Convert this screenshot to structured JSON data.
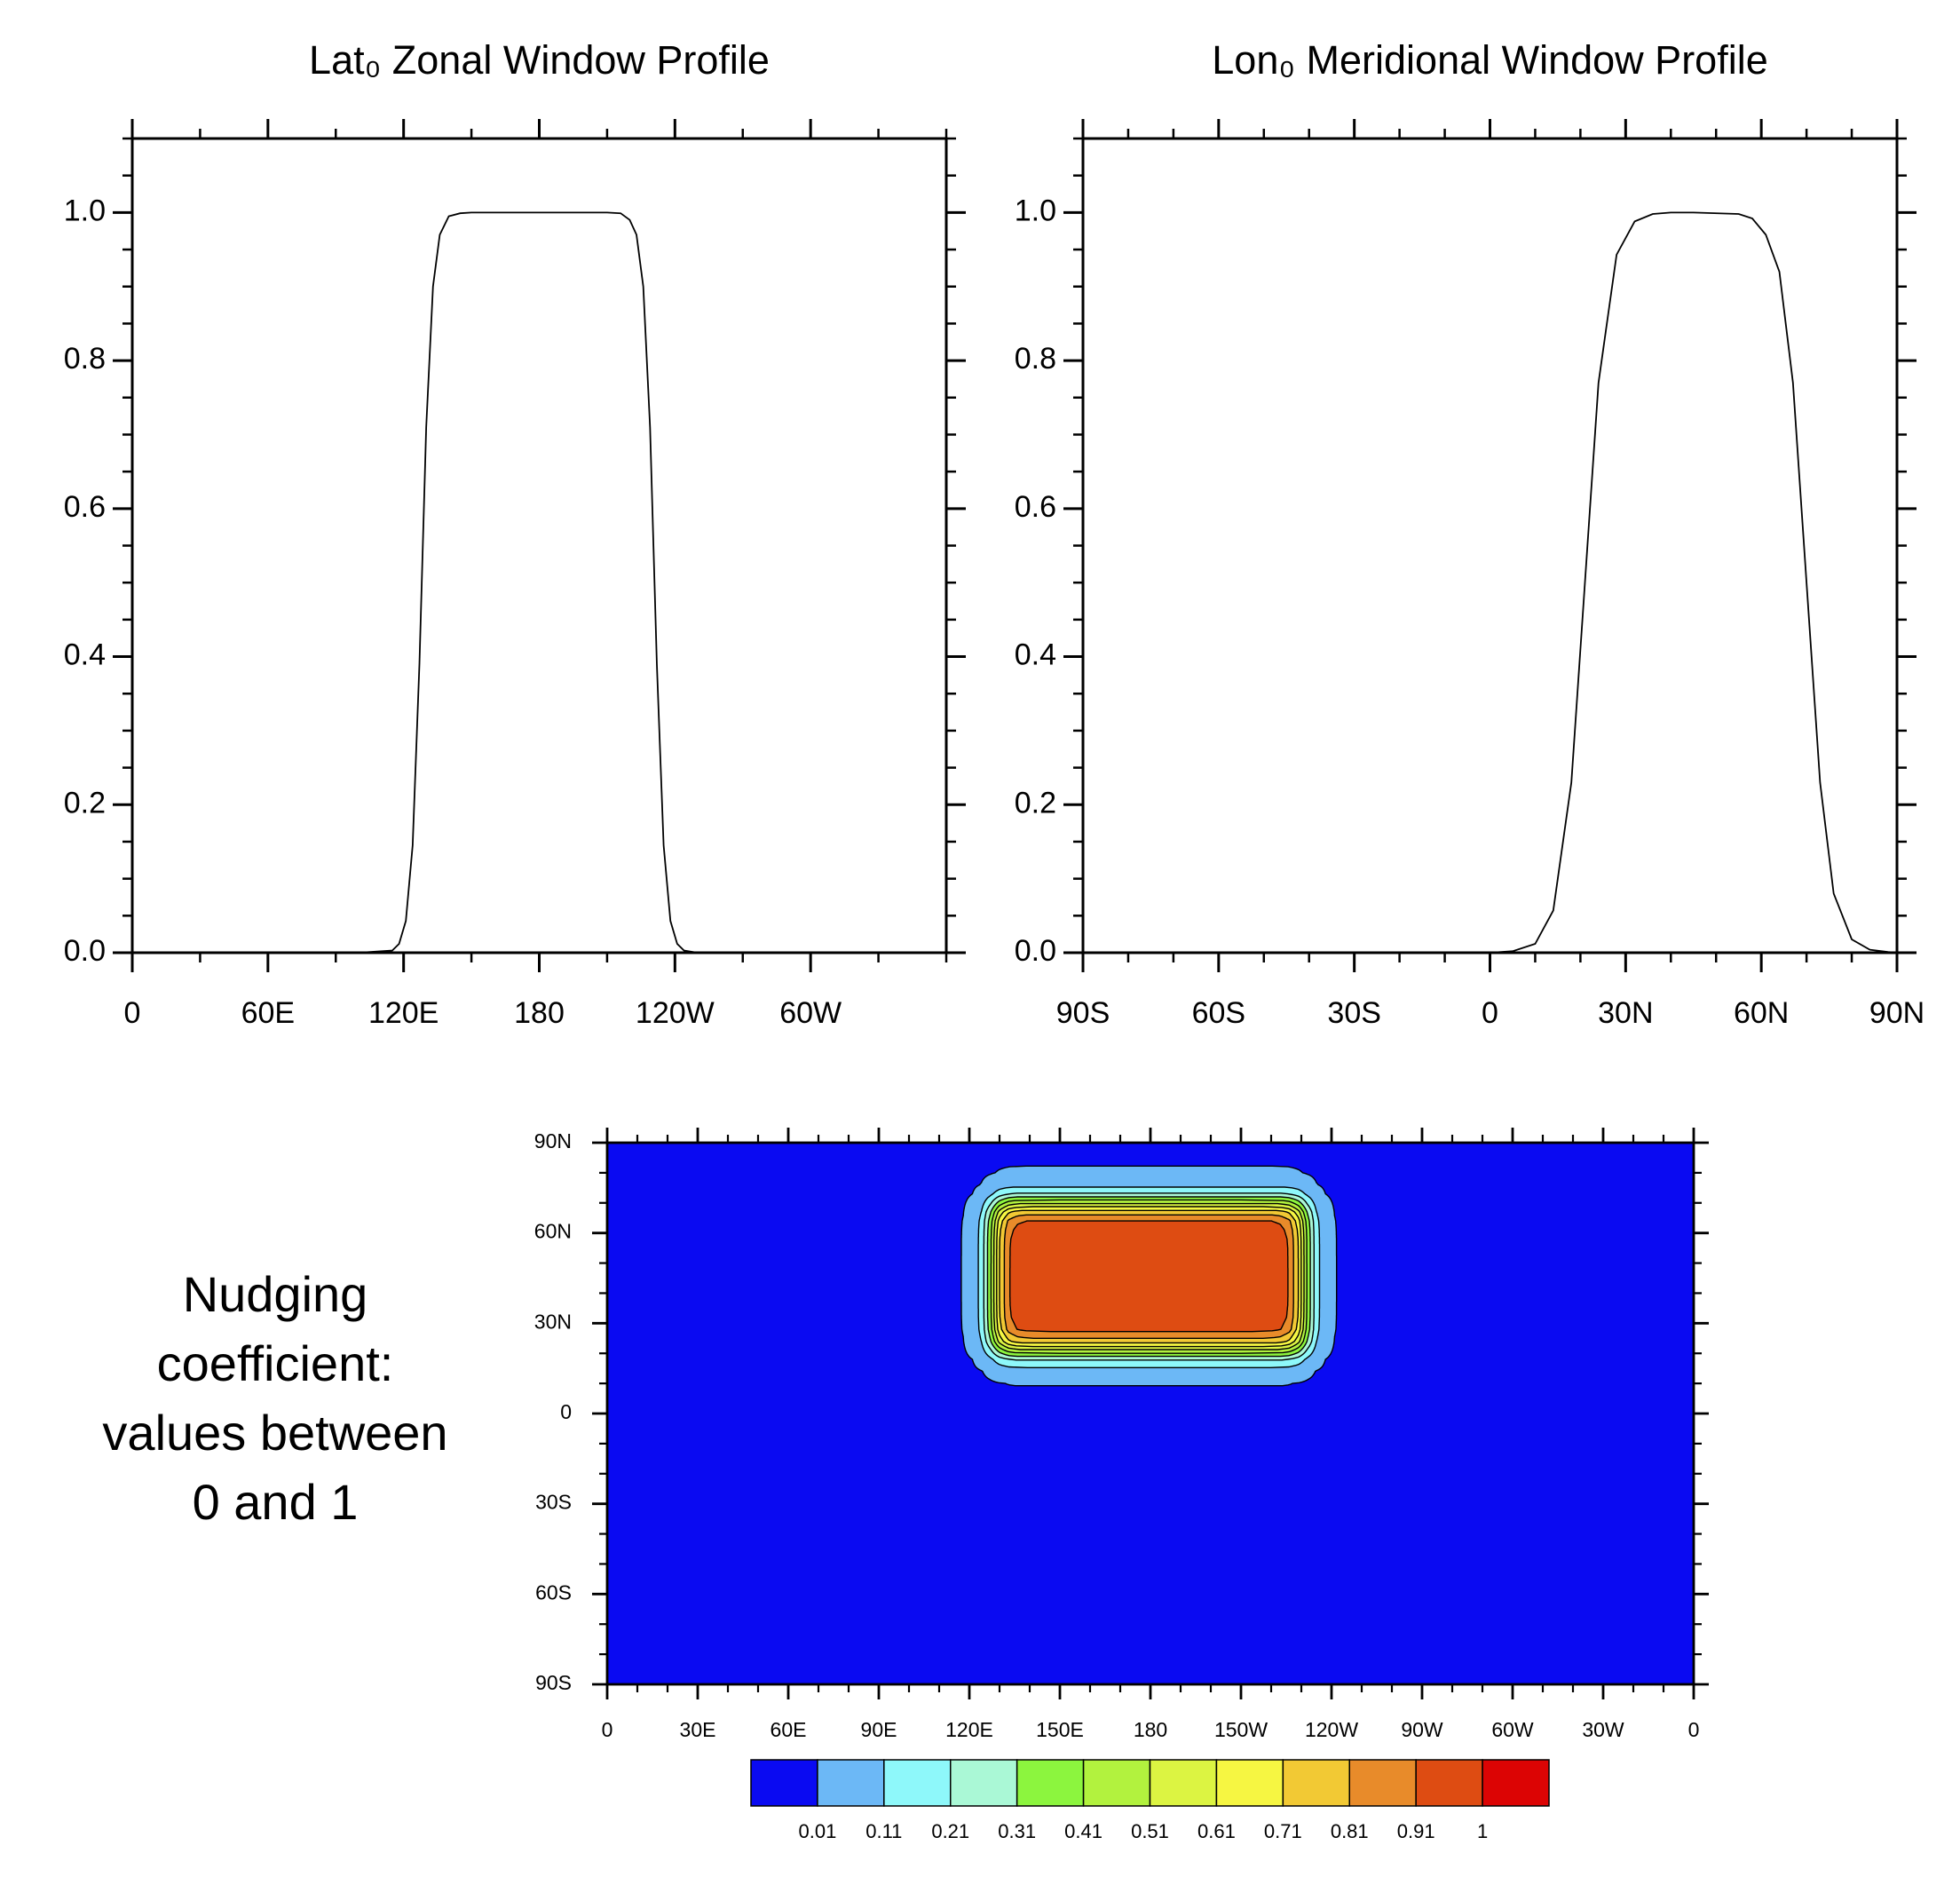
{
  "chart_data": [
    {
      "type": "line",
      "title": "Lat₀ Zonal Window Profile",
      "color": "#000000",
      "x": [
        0,
        100,
        115,
        118,
        121,
        124,
        127,
        130,
        133,
        136,
        140,
        145,
        150,
        200,
        210,
        216,
        220,
        223,
        226,
        229,
        232,
        235,
        238,
        241,
        244,
        250,
        260,
        360
      ],
      "values": [
        0,
        0,
        0.003,
        0.012,
        0.043,
        0.145,
        0.39,
        0.71,
        0.9,
        0.97,
        0.995,
        0.999,
        1,
        1,
        1,
        0.999,
        0.99,
        0.97,
        0.9,
        0.71,
        0.39,
        0.145,
        0.043,
        0.012,
        0.003,
        0,
        0,
        0
      ],
      "xlim": [
        0,
        360
      ],
      "ylim": [
        0,
        1.1
      ],
      "xticks": [
        0,
        {
          "value": 60,
          "label": "60E"
        },
        {
          "value": 120,
          "label": "120E"
        },
        180,
        {
          "value": 240,
          "label": "120W"
        },
        {
          "value": 300,
          "label": "60W"
        }
      ],
      "yticks": [
        {
          "value": 0,
          "label": "0.0"
        },
        0.2,
        0.4,
        0.6,
        0.8,
        {
          "value": 1,
          "label": "1.0"
        }
      ]
    },
    {
      "type": "line",
      "title": "Lon₀ Meridional Window Profile",
      "color": "#000000",
      "x": [
        -90,
        0,
        5,
        10,
        14,
        18,
        21,
        24,
        28,
        32,
        36,
        40,
        45,
        55,
        58,
        61,
        64,
        67,
        70,
        73,
        76,
        80,
        84,
        88,
        90
      ],
      "values": [
        0,
        0,
        0.002,
        0.012,
        0.057,
        0.23,
        0.5,
        0.77,
        0.943,
        0.988,
        0.998,
        1,
        1,
        0.998,
        0.992,
        0.97,
        0.92,
        0.77,
        0.5,
        0.23,
        0.08,
        0.018,
        0.004,
        0.001,
        0
      ],
      "xlim": [
        -90,
        90
      ],
      "ylim": [
        0,
        1.1
      ],
      "xticks": [
        {
          "value": -90,
          "label": "90S"
        },
        {
          "value": -60,
          "label": "60S"
        },
        {
          "value": -30,
          "label": "30S"
        },
        0,
        {
          "value": 30,
          "label": "30N"
        },
        {
          "value": 60,
          "label": "60N"
        },
        {
          "value": 90,
          "label": "90N"
        }
      ],
      "yticks": [
        {
          "value": 0,
          "label": "0.0"
        },
        0.2,
        0.4,
        0.6,
        0.8,
        {
          "value": 1,
          "label": "1.0"
        }
      ]
    },
    {
      "type": "contour",
      "title_lines": [
        "Nudging",
        "coefficient:",
        "values between",
        "0 and 1"
      ],
      "xlim": [
        0,
        360
      ],
      "ylim": [
        -90,
        90
      ],
      "xticks": [
        0,
        {
          "value": 30,
          "label": "30E"
        },
        {
          "value": 60,
          "label": "60E"
        },
        {
          "value": 90,
          "label": "90E"
        },
        {
          "value": 120,
          "label": "120E"
        },
        {
          "value": 150,
          "label": "150E"
        },
        180,
        {
          "value": 210,
          "label": "150W"
        },
        {
          "value": 240,
          "label": "120W"
        },
        {
          "value": 270,
          "label": "90W"
        },
        {
          "value": 300,
          "label": "60W"
        },
        {
          "value": 330,
          "label": "30W"
        },
        {
          "value": 360,
          "label": "0"
        }
      ],
      "yticks": [
        {
          "value": -90,
          "label": "90S"
        },
        {
          "value": -60,
          "label": "60S"
        },
        {
          "value": -30,
          "label": "30S"
        },
        0,
        {
          "value": 30,
          "label": "30N"
        },
        {
          "value": 60,
          "label": "60N"
        },
        {
          "value": 90,
          "label": "90N"
        }
      ],
      "levels": [
        0.01,
        0.11,
        0.21,
        0.31,
        0.41,
        0.51,
        0.61,
        0.71,
        0.81,
        0.91,
        1
      ],
      "colors": [
        "#0a0af2",
        "#6cb8f6",
        "#8ef8fa",
        "#aaf8d6",
        "#8cf53e",
        "#b2f23e",
        "#dcf442",
        "#f6f642",
        "#f2c934",
        "#e88b2a",
        "#de4c12",
        "#dc0404"
      ]
    }
  ]
}
